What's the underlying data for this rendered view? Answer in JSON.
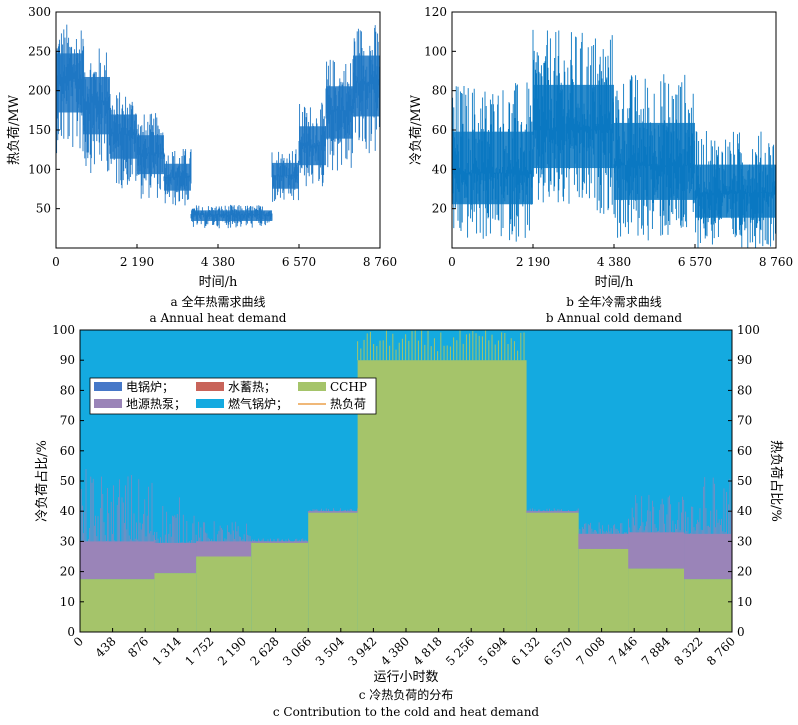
{
  "colors": {
    "heat": "#1f77c4",
    "cold": "#0a78c2",
    "boiler_blue": "#4678c8",
    "water_storage": "#c8645a",
    "cchp_green": "#a5c46a",
    "ground_pump": "#9a84b8",
    "gas_boiler": "#14aae0",
    "heat_load_line": "#f0b878"
  },
  "chart_data": [
    {
      "id": "a",
      "type": "line",
      "xlabel": "时间/h",
      "ylabel": "热负荷/MW",
      "xlim": [
        0,
        8760
      ],
      "ylim": [
        0,
        300
      ],
      "xticks": [
        0,
        2190,
        4380,
        6570,
        8760
      ],
      "xtick_labels": [
        "0",
        "2 190",
        "4 380",
        "6 570",
        "8 760"
      ],
      "yticks": [
        50,
        100,
        150,
        200,
        250,
        300
      ],
      "ytick_labels": [
        "50",
        "100",
        "150",
        "200",
        "250",
        "300"
      ],
      "caption_cn": "a  全年热需求曲线",
      "caption_en": "a  Annual heat demand",
      "series": [
        {
          "segments": [
            {
              "x0": 0,
              "x1": 730,
              "min": 120,
              "max": 287,
              "base": 215
            },
            {
              "x0": 730,
              "x1": 1460,
              "min": 95,
              "max": 257,
              "base": 185
            },
            {
              "x0": 1460,
              "x1": 2190,
              "min": 75,
              "max": 200,
              "base": 145
            },
            {
              "x0": 2190,
              "x1": 2920,
              "min": 62,
              "max": 172,
              "base": 120
            },
            {
              "x0": 2920,
              "x1": 3650,
              "min": 52,
              "max": 128,
              "base": 90
            },
            {
              "x0": 3650,
              "x1": 5840,
              "min": 25,
              "max": 55,
              "base": 42
            },
            {
              "x0": 5840,
              "x1": 6570,
              "min": 55,
              "max": 128,
              "base": 92
            },
            {
              "x0": 6570,
              "x1": 7300,
              "min": 75,
              "max": 185,
              "base": 130
            },
            {
              "x0": 7300,
              "x1": 8030,
              "min": 95,
              "max": 243,
              "base": 175
            },
            {
              "x0": 8030,
              "x1": 8760,
              "min": 115,
              "max": 287,
              "base": 210
            }
          ]
        }
      ]
    },
    {
      "id": "b",
      "type": "line",
      "xlabel": "时间/h",
      "ylabel": "冷负荷/MW",
      "xlim": [
        0,
        8760
      ],
      "ylim": [
        0,
        120
      ],
      "xticks": [
        0,
        2190,
        4380,
        6570,
        8760
      ],
      "xtick_labels": [
        "0",
        "2 190",
        "4 380",
        "6 570",
        "8 760"
      ],
      "yticks": [
        20,
        40,
        60,
        80,
        100,
        120
      ],
      "ytick_labels": [
        "20",
        "40",
        "60",
        "80",
        "100",
        "120"
      ],
      "caption_cn": "b  全年冷需求曲线",
      "caption_en": "b  Annual cold demand",
      "series": [
        {
          "segments": [
            {
              "x0": 0,
              "x1": 2190,
              "min": 3,
              "max": 85,
              "base": 38
            },
            {
              "x0": 2190,
              "x1": 4380,
              "min": 17,
              "max": 111,
              "base": 60
            },
            {
              "x0": 4380,
              "x1": 6570,
              "min": 3,
              "max": 90,
              "base": 42
            },
            {
              "x0": 6570,
              "x1": 8760,
              "min": 0,
              "max": 60,
              "base": 28
            }
          ]
        }
      ]
    },
    {
      "id": "c",
      "type": "area",
      "xlabel": "运行小时数",
      "ylabel_left": "冷负荷占比/%",
      "ylabel_right": "热负荷占比/%",
      "xlim": [
        0,
        8760
      ],
      "ylim": [
        0,
        100
      ],
      "xticks": [
        0,
        438,
        876,
        1314,
        1752,
        2190,
        2628,
        3066,
        3504,
        3942,
        4380,
        4818,
        5256,
        5694,
        6132,
        6570,
        7008,
        7446,
        7884,
        8322,
        8760
      ],
      "xtick_labels": [
        "0",
        "438",
        "876",
        "1 314",
        "1 752",
        "2 190",
        "2 628",
        "3 066",
        "3 504",
        "3 942",
        "4 380",
        "4 818",
        "5 256",
        "5 694",
        "6 132",
        "6 570",
        "7 008",
        "7 446",
        "7 884",
        "8 322",
        "8 760"
      ],
      "yticks": [
        0,
        10,
        20,
        30,
        40,
        50,
        60,
        70,
        80,
        90,
        100
      ],
      "ytick_labels": [
        "0",
        "10",
        "20",
        "30",
        "40",
        "50",
        "60",
        "70",
        "80",
        "90",
        "100"
      ],
      "caption_cn": "c  冷热负荷的分布",
      "caption_en": "c  Contribution to the cold and heat demand",
      "legend": {
        "placement": "upper-left",
        "entries": [
          {
            "label": "电锅炉；",
            "color_key": "boiler_blue",
            "kind": "patch"
          },
          {
            "label": "地源热泵；",
            "color_key": "ground_pump",
            "kind": "patch"
          },
          {
            "label": "水蓄热；",
            "color_key": "water_storage",
            "kind": "patch"
          },
          {
            "label": "燃气锅炉；",
            "color_key": "gas_boiler",
            "kind": "patch"
          },
          {
            "label": "CCHP",
            "color_key": "cchp_green",
            "kind": "patch"
          },
          {
            "label": "热负荷",
            "color_key": "heat_load_line",
            "kind": "line"
          }
        ]
      },
      "periods": [
        {
          "x0": 0,
          "x1": 1000,
          "cchp": 17.5,
          "ground_pump": 12.5,
          "pump_spike": 54,
          "gas_boiler_top": 100
        },
        {
          "x0": 1000,
          "x1": 1560,
          "cchp": 19.5,
          "ground_pump": 10,
          "pump_spike": 45,
          "gas_boiler_top": 100
        },
        {
          "x0": 1560,
          "x1": 2300,
          "cchp": 25,
          "ground_pump": 5,
          "pump_spike": 37,
          "gas_boiler_top": 100
        },
        {
          "x0": 2300,
          "x1": 3066,
          "cchp": 29.5,
          "ground_pump": 0.5,
          "pump_spike": 31,
          "gas_boiler_top": 100
        },
        {
          "x0": 3066,
          "x1": 3730,
          "cchp": 39.5,
          "ground_pump": 0.5,
          "pump_spike": 41,
          "gas_boiler_top": 100
        },
        {
          "x0": 3730,
          "x1": 6000,
          "cchp": 90,
          "ground_pump": 0,
          "pump_spike": 0,
          "gas_boiler_top": 100
        },
        {
          "x0": 6000,
          "x1": 6700,
          "cchp": 39.5,
          "ground_pump": 0.5,
          "pump_spike": 41,
          "gas_boiler_top": 100
        },
        {
          "x0": 6700,
          "x1": 7370,
          "cchp": 27.5,
          "ground_pump": 5,
          "pump_spike": 37,
          "gas_boiler_top": 100
        },
        {
          "x0": 7370,
          "x1": 8120,
          "cchp": 21,
          "ground_pump": 12,
          "pump_spike": 46,
          "gas_boiler_top": 100
        },
        {
          "x0": 8120,
          "x1": 8760,
          "cchp": 17.5,
          "ground_pump": 15,
          "pump_spike": 53,
          "gas_boiler_top": 100
        }
      ]
    }
  ]
}
